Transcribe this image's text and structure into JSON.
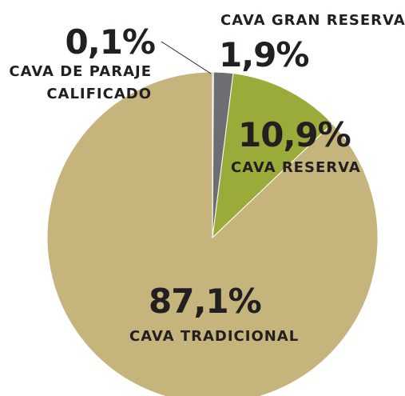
{
  "chart_data": {
    "type": "pie",
    "categories": [
      "CAVA DE PARAJE CALIFICADO",
      "CAVA GRAN RESERVA",
      "CAVA RESERVA",
      "CAVA TRADICIONAL"
    ],
    "values": [
      0.1,
      1.9,
      10.9,
      87.1
    ],
    "value_labels": [
      "0,1%",
      "1,9%",
      "10,9%",
      "87,1%"
    ],
    "colors": [
      "#3a3a3c",
      "#6d6e71",
      "#9aab3a",
      "#c5b47b"
    ]
  }
}
